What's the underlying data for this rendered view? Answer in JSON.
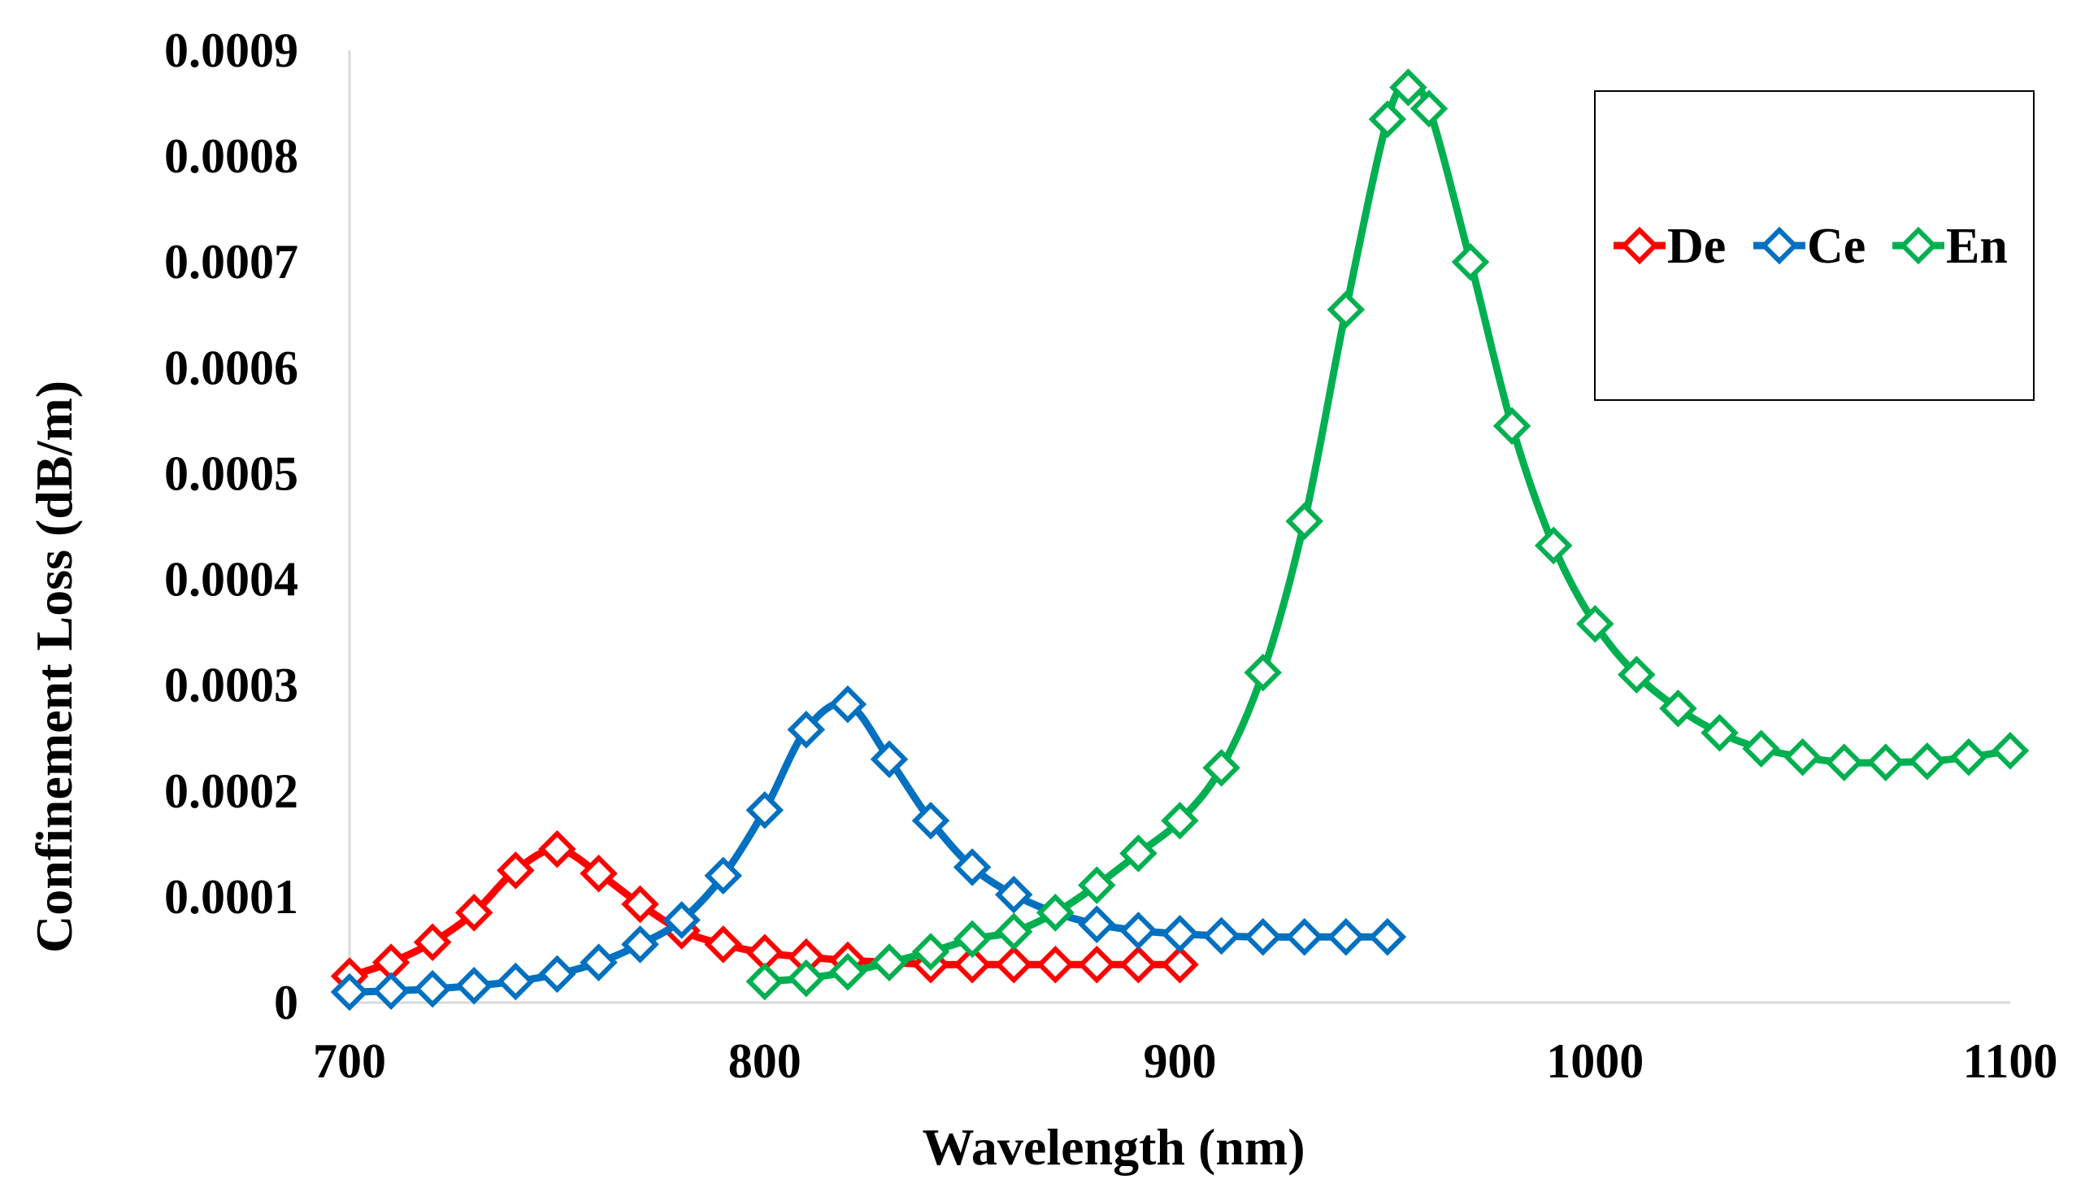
{
  "chart_data": {
    "type": "line",
    "title": "",
    "xlabel": "Wavelength (nm)",
    "ylabel": "Confinement Loss (dB/m)",
    "xlim": [
      700,
      1100
    ],
    "ylim": [
      0,
      0.0009
    ],
    "x_ticks": [
      "700",
      "800",
      "900",
      "1000",
      "1100"
    ],
    "y_ticks": [
      "0",
      "0.0001",
      "0.0002",
      "0.0003",
      "0.0004",
      "0.0005",
      "0.0006",
      "0.0007",
      "0.0008",
      "0.0009"
    ],
    "grid": false,
    "legend_position": "top-right",
    "marker": "diamond-open",
    "series": [
      {
        "name": "De",
        "color": "#FF0000",
        "x": [
          700,
          710,
          720,
          730,
          740,
          750,
          760,
          770,
          780,
          790,
          800,
          810,
          820,
          830,
          840,
          850,
          860,
          870,
          880,
          890,
          900
        ],
        "y": [
          2.5e-05,
          3.8e-05,
          5.7e-05,
          8.5e-05,
          0.000125,
          0.000145,
          0.000122,
          9.3e-05,
          6.8e-05,
          5.5e-05,
          4.7e-05,
          4.3e-05,
          4e-05,
          3.8e-05,
          3.6e-05,
          3.6e-05,
          3.6e-05,
          3.6e-05,
          3.6e-05,
          3.6e-05,
          3.6e-05
        ]
      },
      {
        "name": "Ce",
        "color": "#0070C0",
        "x": [
          700,
          710,
          720,
          730,
          740,
          750,
          760,
          770,
          780,
          790,
          800,
          810,
          820,
          830,
          840,
          850,
          860,
          870,
          880,
          890,
          900,
          910,
          920,
          930,
          940,
          950
        ],
        "y": [
          1e-05,
          1.1e-05,
          1.3e-05,
          1.6e-05,
          2e-05,
          2.7e-05,
          3.8e-05,
          5.5e-05,
          7.8e-05,
          0.00012,
          0.000182,
          0.000258,
          0.000282,
          0.00023,
          0.000172,
          0.000128,
          0.000102,
          8.5e-05,
          7.4e-05,
          6.8e-05,
          6.5e-05,
          6.3e-05,
          6.2e-05,
          6.2e-05,
          6.2e-05,
          6.2e-05
        ]
      },
      {
        "name": "En",
        "color": "#00B050",
        "x": [
          800,
          810,
          820,
          830,
          840,
          850,
          860,
          870,
          880,
          890,
          900,
          910,
          920,
          930,
          940,
          950,
          955,
          960,
          970,
          980,
          990,
          1000,
          1010,
          1020,
          1030,
          1040,
          1050,
          1060,
          1070,
          1080,
          1090,
          1100
        ],
        "y": [
          2e-05,
          2.3e-05,
          2.9e-05,
          3.8e-05,
          4.8e-05,
          6e-05,
          6.7e-05,
          8.5e-05,
          0.000111,
          0.000141,
          0.000172,
          0.000222,
          0.000312,
          0.000455,
          0.000655,
          0.000835,
          0.000865,
          0.000845,
          0.0007,
          0.000545,
          0.000432,
          0.000358,
          0.00031,
          0.000278,
          0.000255,
          0.00024,
          0.000232,
          0.000227,
          0.000227,
          0.000228,
          0.000232,
          0.000238
        ]
      }
    ]
  }
}
